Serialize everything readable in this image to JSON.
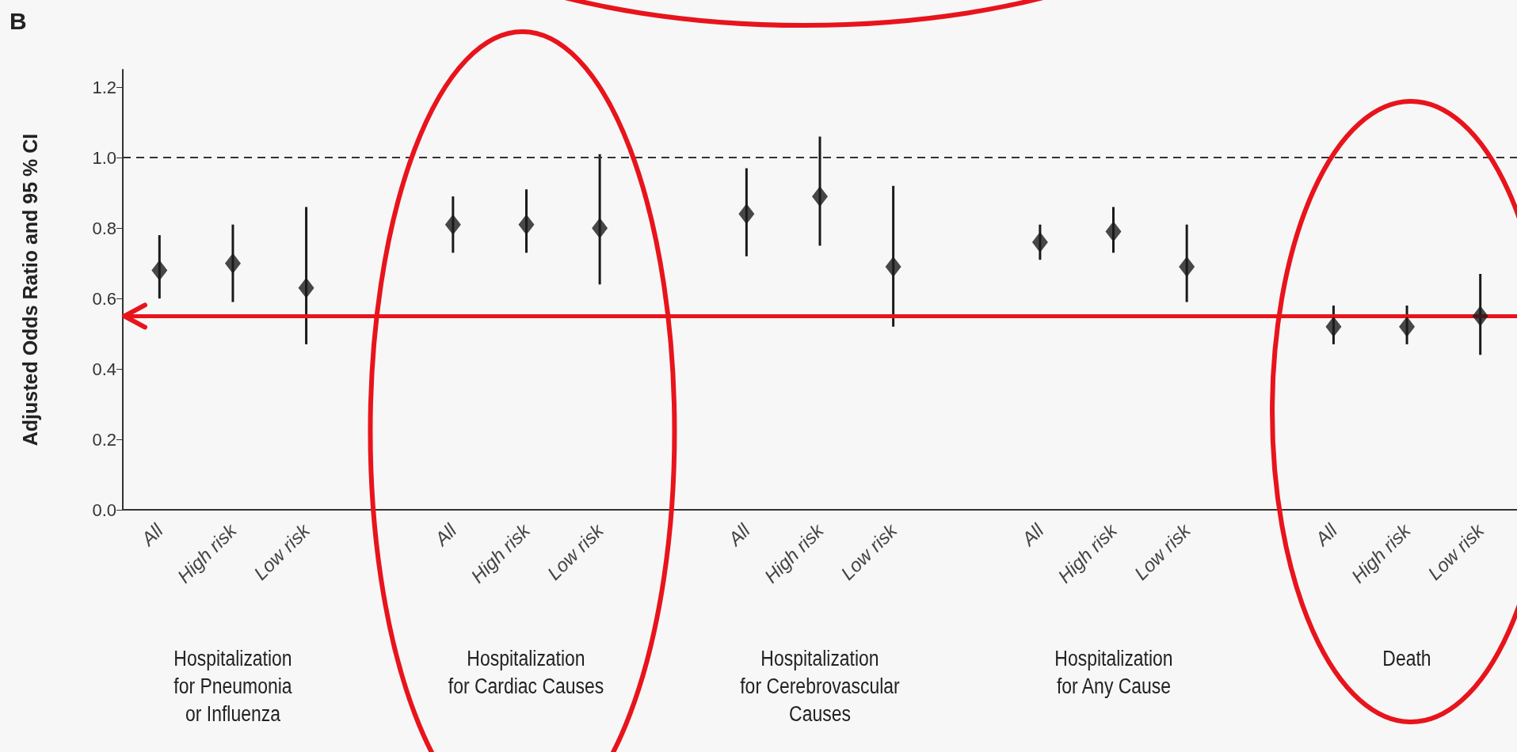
{
  "chart_data": {
    "type": "scatter",
    "title": "B",
    "ylabel": "Adjusted Odds Ratio and 95 % CI",
    "categories": [
      "All",
      "High risk",
      "Low risk",
      null,
      "All",
      "High risk",
      "Low risk",
      null,
      "All",
      "High risk",
      "Low risk",
      null,
      "All",
      "High risk",
      "Low risk",
      null,
      "All",
      "High risk",
      "Low risk"
    ],
    "values": [
      0.68,
      0.7,
      0.63,
      null,
      0.81,
      0.81,
      0.8,
      null,
      0.84,
      0.89,
      0.69,
      null,
      0.76,
      0.79,
      0.69,
      null,
      0.52,
      0.52,
      0.55
    ],
    "errors": [
      [
        0.6,
        0.78
      ],
      [
        0.59,
        0.81
      ],
      [
        0.47,
        0.86
      ],
      null,
      [
        0.73,
        0.89
      ],
      [
        0.73,
        0.91
      ],
      [
        0.64,
        1.01
      ],
      null,
      [
        0.72,
        0.97
      ],
      [
        0.75,
        1.06
      ],
      [
        0.52,
        0.92
      ],
      null,
      [
        0.71,
        0.81
      ],
      [
        0.73,
        0.86
      ],
      [
        0.59,
        0.81
      ],
      null,
      [
        0.47,
        0.58
      ],
      [
        0.47,
        0.58
      ],
      [
        0.44,
        0.67
      ]
    ],
    "color": "#1a1a1a",
    "marker": "diamond",
    "ylim": [
      0,
      1.25
    ],
    "yticks": [
      {
        "value": 0,
        "label": "0.0"
      },
      0.2,
      0.4,
      0.6,
      0.8,
      {
        "value": 1,
        "label": "1.0"
      },
      1.2
    ],
    "ref_lines": [
      {
        "axis": "y",
        "value": 1,
        "color": "#333333",
        "line_style": "dashed"
      },
      {
        "axis": "y",
        "value": 0.55,
        "color": "#e8141c",
        "line_style": "solid"
      }
    ],
    "annotations": [
      "Hospitalization\nfor Pneumonia\nor Influenza",
      "Hospitalization\nfor Cardiac Causes",
      "Hospitalization\nfor Cerebrovascular\nCauses",
      "Hospitalization\nfor Any Cause",
      "Death"
    ],
    "grid": false
  }
}
